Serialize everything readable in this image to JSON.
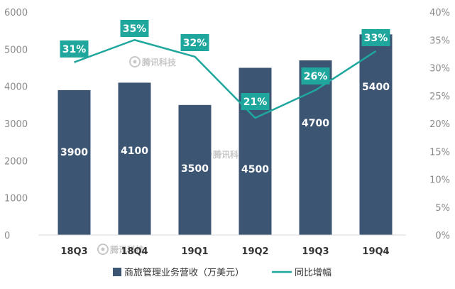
{
  "chart_data": {
    "type": "bar",
    "categories": [
      "18Q3",
      "18Q4",
      "19Q1",
      "19Q2",
      "19Q3",
      "19Q4"
    ],
    "series": [
      {
        "name": "商旅管理业务营收（万美元）",
        "kind": "bar",
        "axis": "left",
        "color": "#3c5573",
        "values": [
          3900,
          4100,
          3500,
          4500,
          4700,
          5400
        ],
        "value_labels": [
          "3900",
          "4100",
          "3500",
          "4500",
          "4700",
          "5400"
        ]
      },
      {
        "name": "同比增幅",
        "kind": "line",
        "axis": "right",
        "color": "#1fa79e",
        "values": [
          31,
          35,
          32,
          21,
          26,
          33
        ],
        "value_labels": [
          "31%",
          "35%",
          "32%",
          "21%",
          "26%",
          "33%"
        ]
      }
    ],
    "ylim_left": [
      0,
      6000
    ],
    "ylim_right": [
      0,
      40
    ],
    "yticks_left": [
      "0",
      "1000",
      "2000",
      "3000",
      "4000",
      "5000",
      "6000"
    ],
    "yticks_right": [
      "0%",
      "5%",
      "10%",
      "15%",
      "20%",
      "25%",
      "30%",
      "35%",
      "40%"
    ],
    "legend_position": "bottom",
    "grid": false
  },
  "watermark": {
    "text": "腾讯科技",
    "icon": "eye-logo-icon"
  }
}
